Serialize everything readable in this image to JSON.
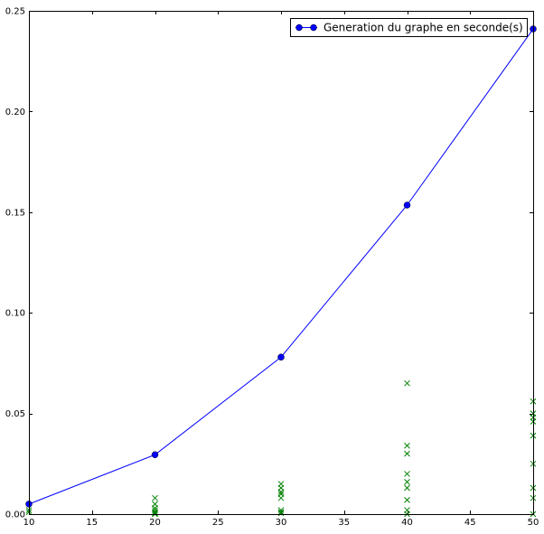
{
  "chart_data": {
    "type": "line",
    "title": "",
    "xlabel": "",
    "ylabel": "",
    "xlim": [
      10,
      50
    ],
    "ylim": [
      0,
      0.25
    ],
    "xticks": [
      10,
      15,
      20,
      25,
      30,
      35,
      40,
      45,
      50
    ],
    "xtick_labels": [
      "10",
      "15",
      "20",
      "25",
      "30",
      "35",
      "40",
      "45",
      "50"
    ],
    "yticks": [
      0.0,
      0.05,
      0.1,
      0.15,
      0.2,
      0.25
    ],
    "ytick_labels": [
      "0.00",
      "0.05",
      "0.10",
      "0.15",
      "0.20",
      "0.25"
    ],
    "grid": false,
    "legend": {
      "placement": "top-right",
      "entries": [
        "Generation du graphe en seconde(s)"
      ]
    },
    "series": [
      {
        "name": "Generation du graphe en seconde(s)",
        "kind": "line",
        "marker": "circle",
        "color": "#0000ff",
        "x": [
          10,
          20,
          30,
          40,
          50
        ],
        "y": [
          0.005,
          0.0295,
          0.078,
          0.1535,
          0.241
        ]
      },
      {
        "kind": "scatter",
        "marker": "x",
        "color": "#008000",
        "x": [
          10,
          10,
          20,
          20,
          20,
          20,
          20,
          20,
          20,
          30,
          30,
          30,
          30,
          30,
          30,
          30,
          30,
          40,
          40,
          40,
          40,
          40,
          40,
          40,
          40,
          40,
          50,
          50,
          50,
          50,
          50,
          50,
          50,
          50,
          50
        ],
        "y": [
          0.001,
          0.002,
          0.008,
          0.005,
          0.003,
          0.002,
          0.001,
          0.0005,
          0.0,
          0.015,
          0.013,
          0.011,
          0.01,
          0.008,
          0.002,
          0.001,
          0.0005,
          0.065,
          0.034,
          0.03,
          0.02,
          0.016,
          0.013,
          0.007,
          0.002,
          0.0,
          0.056,
          0.05,
          0.048,
          0.046,
          0.039,
          0.025,
          0.013,
          0.008,
          0.0
        ]
      }
    ]
  }
}
